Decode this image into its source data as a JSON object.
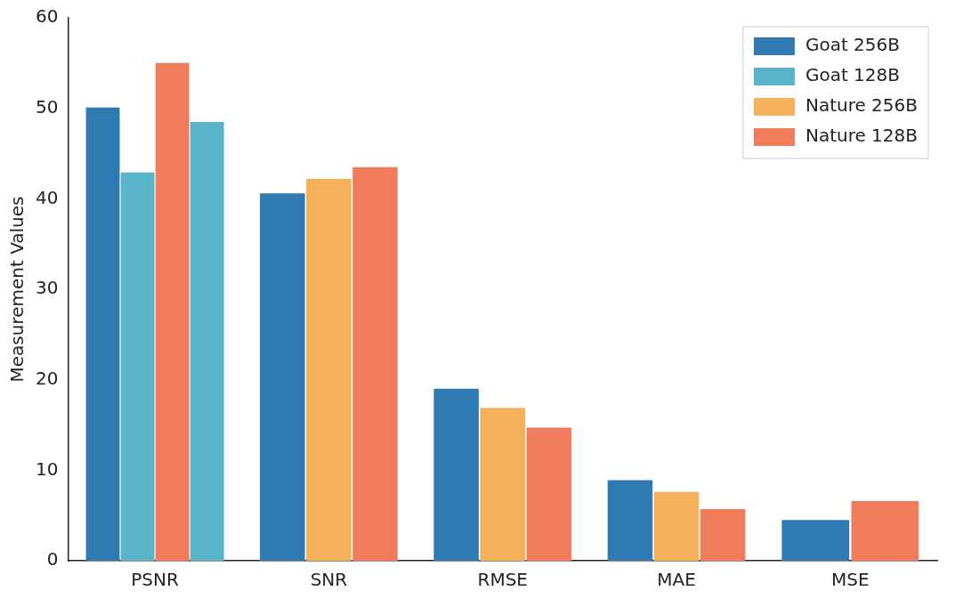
{
  "chart_data": {
    "type": "bar",
    "ylabel": "Measurement Values",
    "categories": [
      "PSNR",
      "SNR",
      "RMSE",
      "MAE",
      "MSE"
    ],
    "series": [
      {
        "name": "Goat 256B",
        "color": "#2f7ab0",
        "values": [
          50.1,
          40.6,
          19.0,
          8.9,
          4.5
        ]
      },
      {
        "name": "Goat 128B",
        "color": "#5ab4c9",
        "values": [
          42.9,
          null,
          null,
          null,
          null
        ]
      },
      {
        "name": "Nature 256B",
        "color": "#f5b05a",
        "values": [
          null,
          42.2,
          16.9,
          7.6,
          null
        ]
      },
      {
        "name": "Nature 128B",
        "color": "#f07c5e",
        "values": [
          55.0,
          43.5,
          14.7,
          5.7,
          6.6
        ]
      },
      {
        "color": "#5ab4c9",
        "values": [
          48.5,
          null,
          null,
          null,
          null
        ]
      }
    ],
    "ylim": [
      0,
      60
    ],
    "yticks": [
      0,
      10,
      20,
      30,
      40,
      50,
      60
    ],
    "grid": false,
    "legend": "top right"
  }
}
